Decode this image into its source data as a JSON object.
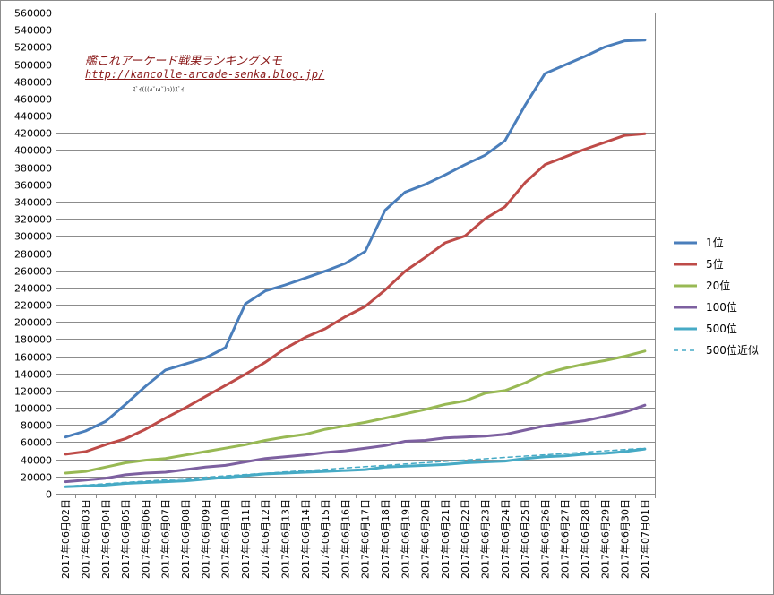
{
  "chart_data": {
    "type": "line",
    "title": "",
    "xlabel": "",
    "ylabel": "",
    "ylim": [
      0,
      560000
    ],
    "ytick_step": 20000,
    "grid": true,
    "legend_position": "right",
    "categories": [
      "2017年06月02日",
      "2017年06月03日",
      "2017年06月04日",
      "2017年06月05日",
      "2017年06月06日",
      "2017年06月07日",
      "2017年06月08日",
      "2017年06月09日",
      "2017年06月10日",
      "2017年06月11日",
      "2017年06月12日",
      "2017年06月13日",
      "2017年06月14日",
      "2017年06月15日",
      "2017年06月16日",
      "2017年06月17日",
      "2017年06月18日",
      "2017年06月19日",
      "2017年06月20日",
      "2017年06月21日",
      "2017年06月22日",
      "2017年06月23日",
      "2017年06月24日",
      "2017年06月25日",
      "2017年06月26日",
      "2017年06月27日",
      "2017年06月28日",
      "2017年06月29日",
      "2017年06月30日",
      "2017年07月01日"
    ],
    "series": [
      {
        "name": "1位",
        "color": "#4a7ebb",
        "dashed": false,
        "values": [
          66000,
          73000,
          84000,
          104000,
          125000,
          144000,
          151000,
          158000,
          170000,
          221000,
          236000,
          243000,
          251000,
          259000,
          268000,
          282000,
          330000,
          351000,
          360000,
          371000,
          383000,
          394000,
          411000,
          452000,
          489000,
          499000,
          509000,
          520000,
          527000,
          528000
        ]
      },
      {
        "name": "5位",
        "color": "#be4b48",
        "dashed": false,
        "values": [
          46000,
          49000,
          57000,
          64000,
          75000,
          88000,
          100000,
          113000,
          126000,
          139000,
          153000,
          169000,
          182000,
          192000,
          206000,
          218000,
          237000,
          259000,
          275000,
          292000,
          300000,
          320000,
          334000,
          362000,
          383000,
          392000,
          401000,
          409000,
          417000,
          419000
        ]
      },
      {
        "name": "20位",
        "color": "#98b954",
        "dashed": false,
        "values": [
          24000,
          26000,
          31000,
          36000,
          39000,
          41000,
          45000,
          49000,
          53000,
          57000,
          62000,
          66000,
          69000,
          75000,
          79000,
          83000,
          88000,
          93000,
          98000,
          104000,
          108000,
          117000,
          120000,
          129000,
          140000,
          146000,
          151000,
          155000,
          160000,
          166000
        ]
      },
      {
        "name": "100位",
        "color": "#7d60a0",
        "dashed": false,
        "values": [
          14000,
          16000,
          18000,
          22000,
          24000,
          25000,
          28000,
          31000,
          33000,
          37000,
          41000,
          43000,
          45000,
          48000,
          50000,
          53000,
          56000,
          61000,
          62000,
          65000,
          66000,
          67000,
          69000,
          74000,
          79000,
          82000,
          85000,
          90000,
          95000,
          103000
        ]
      },
      {
        "name": "500位",
        "color": "#46aac5",
        "dashed": false,
        "values": [
          8000,
          9000,
          10000,
          12000,
          13000,
          14000,
          15000,
          17000,
          19000,
          21000,
          23000,
          24000,
          25000,
          26000,
          27000,
          28000,
          31000,
          32000,
          33000,
          34000,
          36000,
          37000,
          38000,
          41000,
          43000,
          44000,
          46000,
          47000,
          49000,
          52000
        ]
      },
      {
        "name": "500位近似",
        "color": "#46aac5",
        "dashed": true,
        "values": [
          8500,
          10000,
          11600,
          13100,
          14600,
          16200,
          17700,
          19200,
          20800,
          22300,
          23800,
          25400,
          26900,
          28400,
          30000,
          31500,
          33000,
          34600,
          36100,
          37600,
          39200,
          40700,
          42200,
          43800,
          45300,
          46800,
          48400,
          49900,
          51400,
          53000
        ]
      }
    ]
  },
  "watermark": {
    "title": "艦これアーケード戦果ランキングメモ",
    "url": "http://kancolle-arcade-senka.blog.jp/",
    "kaomoji": "ｽﾞｲ(((ง˘ω˘)ว))ｽﾞｲ"
  }
}
